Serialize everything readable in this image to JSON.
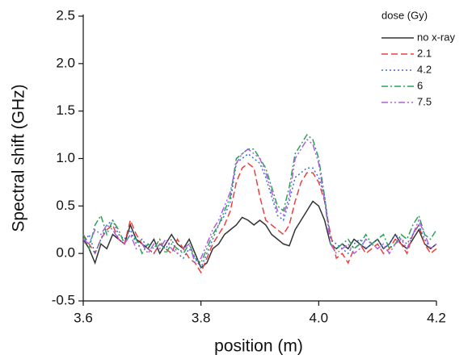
{
  "chart_data": {
    "type": "line",
    "xlabel": "position (m)",
    "ylabel": "Spectral shift (GHz)",
    "legend_title": "dose (Gy)",
    "legend": "upper right",
    "xlim": [
      3.6,
      4.2
    ],
    "xticks": [
      3.6,
      3.8,
      {
        "value": 4,
        "label": "4.0"
      },
      4.2
    ],
    "ylim": [
      -0.5,
      2.5
    ],
    "yticks": [
      -0.5,
      {
        "value": 0,
        "label": "0.0"
      },
      0.5,
      {
        "value": 1,
        "label": "1.0"
      },
      1.5,
      {
        "value": 2,
        "label": "2.0"
      },
      2.5
    ],
    "x": [
      3.6,
      3.61,
      3.62,
      3.63,
      3.64,
      3.65,
      3.66,
      3.67,
      3.68,
      3.69,
      3.7,
      3.71,
      3.72,
      3.73,
      3.74,
      3.75,
      3.76,
      3.77,
      3.78,
      3.79,
      3.8,
      3.81,
      3.82,
      3.83,
      3.84,
      3.85,
      3.86,
      3.87,
      3.88,
      3.89,
      3.9,
      3.91,
      3.92,
      3.93,
      3.94,
      3.95,
      3.96,
      3.97,
      3.98,
      3.99,
      4.0,
      4.01,
      4.02,
      4.03,
      4.04,
      4.05,
      4.06,
      4.07,
      4.08,
      4.09,
      4.1,
      4.11,
      4.12,
      4.13,
      4.14,
      4.15,
      4.16,
      4.17,
      4.18,
      4.19,
      4.2
    ],
    "series": [
      {
        "name": "no x-ray",
        "color": "#333333",
        "style": "solid",
        "values": [
          0.15,
          0.05,
          -0.1,
          0.1,
          0.05,
          0.2,
          0.15,
          0.1,
          0.3,
          0.15,
          0.1,
          0.05,
          0.15,
          0.0,
          0.1,
          0.2,
          0.1,
          0.05,
          0.15,
          0.0,
          -0.15,
          -0.1,
          0.05,
          0.1,
          0.2,
          0.25,
          0.3,
          0.38,
          0.35,
          0.3,
          0.35,
          0.3,
          0.2,
          0.15,
          0.1,
          0.08,
          0.25,
          0.35,
          0.45,
          0.55,
          0.5,
          0.35,
          0.1,
          0.05,
          0.1,
          0.05,
          0.15,
          0.1,
          0.05,
          0.1,
          0.15,
          0.05,
          0.1,
          0.2,
          0.1,
          0.05,
          0.15,
          0.25,
          0.1,
          0.05,
          0.1
        ]
      },
      {
        "name": "2.1",
        "color": "#e8423f",
        "style": "dashed",
        "values": [
          0.2,
          0.1,
          0.0,
          0.15,
          0.25,
          0.3,
          0.15,
          0.1,
          0.35,
          0.2,
          0.1,
          0.05,
          0.0,
          0.1,
          0.05,
          0.0,
          0.15,
          0.05,
          -0.05,
          -0.1,
          -0.2,
          -0.05,
          0.1,
          0.2,
          0.3,
          0.45,
          0.75,
          0.9,
          0.95,
          0.9,
          0.6,
          0.35,
          0.3,
          0.25,
          0.2,
          0.3,
          0.55,
          0.75,
          0.85,
          0.85,
          0.75,
          0.55,
          0.2,
          -0.05,
          0.0,
          -0.1,
          0.05,
          0.1,
          0.0,
          0.05,
          0.1,
          0.0,
          0.05,
          0.15,
          0.1,
          0.0,
          0.2,
          0.3,
          0.1,
          0.0,
          0.05
        ]
      },
      {
        "name": "4.2",
        "color": "#3a6fd6",
        "style": "dotted",
        "values": [
          0.1,
          0.2,
          0.0,
          0.15,
          0.3,
          0.35,
          0.2,
          0.15,
          0.25,
          0.1,
          0.15,
          0.05,
          0.0,
          0.1,
          0.05,
          0.15,
          0.0,
          -0.05,
          0.05,
          -0.05,
          -0.15,
          0.0,
          0.15,
          0.3,
          0.4,
          0.55,
          0.95,
          1.0,
          1.05,
          1.0,
          0.95,
          0.8,
          0.6,
          0.4,
          0.35,
          0.55,
          0.8,
          0.85,
          0.9,
          0.9,
          0.8,
          0.6,
          0.15,
          0.1,
          0.05,
          0.0,
          0.1,
          0.15,
          0.05,
          0.1,
          0.15,
          0.05,
          0.1,
          0.2,
          0.15,
          0.1,
          0.2,
          0.3,
          0.15,
          0.05,
          0.1
        ]
      },
      {
        "name": "6",
        "color": "#2ca05a",
        "style": "dashdot",
        "values": [
          0.2,
          0.05,
          0.3,
          0.4,
          0.2,
          0.35,
          0.25,
          0.1,
          0.2,
          0.15,
          0.0,
          0.1,
          0.05,
          0.15,
          0.0,
          0.1,
          0.05,
          0.0,
          0.1,
          -0.05,
          -0.1,
          0.05,
          0.2,
          0.3,
          0.45,
          0.6,
          1.0,
          1.05,
          1.1,
          1.1,
          1.0,
          0.9,
          0.7,
          0.5,
          0.45,
          0.7,
          1.05,
          1.15,
          1.25,
          1.2,
          1.0,
          0.6,
          0.1,
          0.05,
          0.1,
          0.15,
          0.05,
          0.1,
          0.2,
          0.1,
          0.15,
          0.2,
          0.05,
          0.1,
          0.2,
          0.15,
          0.3,
          0.4,
          0.2,
          0.15,
          0.25
        ]
      },
      {
        "name": "7.5",
        "color": "#b05ce0",
        "style": "dashdotdot",
        "values": [
          0.15,
          0.1,
          0.25,
          0.2,
          0.3,
          0.25,
          0.15,
          0.1,
          0.2,
          0.05,
          0.1,
          0.0,
          0.1,
          0.05,
          0.15,
          0.05,
          0.0,
          0.05,
          0.1,
          -0.1,
          -0.05,
          0.1,
          0.25,
          0.35,
          0.5,
          0.65,
          0.95,
          1.05,
          1.1,
          1.05,
          1.0,
          0.85,
          0.65,
          0.45,
          0.4,
          0.6,
          1.0,
          1.1,
          1.2,
          1.15,
          0.95,
          0.55,
          0.1,
          0.0,
          0.05,
          0.1,
          0.0,
          0.05,
          0.15,
          0.1,
          0.05,
          0.1,
          0.0,
          0.1,
          0.15,
          0.05,
          0.2,
          0.35,
          0.2,
          0.05,
          0.1
        ]
      }
    ]
  }
}
